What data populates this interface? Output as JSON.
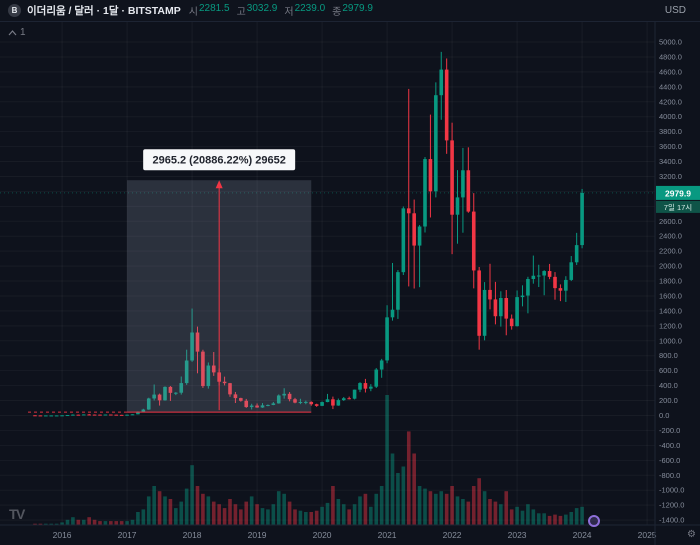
{
  "header": {
    "symbol_icon_letter": "B",
    "title": "이더리움 / 달러 · 1달 · BITSTAMP",
    "ohlc": {
      "open_label": "시",
      "open_value": "2281.5",
      "high_label": "고",
      "high_value": "3032.9",
      "low_label": "저",
      "low_value": "2239.0",
      "close_label": "종",
      "close_value": "2979.9"
    },
    "currency_button_label": "USD"
  },
  "chart_overlay": {
    "pane_control_count": "1"
  },
  "price_scale": {
    "labels_max": 5000,
    "labels_min": -1400,
    "labels_step": 200,
    "last_price_badge": "2979.9",
    "countdown_badge": "7일 17시"
  },
  "time_scale": {
    "year_labels": [
      "2016",
      "2017",
      "2018",
      "2019",
      "2020",
      "2021",
      "2022",
      "2023",
      "2024",
      "2025"
    ]
  },
  "measure_tool": {
    "label_text": "2965.2 (20886.22%) 29652",
    "from_month": "2017-01",
    "to_month": "2019-11",
    "price_top": 3150,
    "price_bottom": 45
  },
  "branding": {
    "logo_text": "TV"
  },
  "colors": {
    "up": "#089981",
    "down": "#f23645",
    "badge_green": "#089981",
    "countdown_bg": "#0f5448",
    "countdown_text": "#d6ece7",
    "bg": "#0e121c"
  },
  "chart_data": {
    "type": "candlestick",
    "symbol_title": "이더리움 / 달러",
    "interval": "1달",
    "exchange": "BITSTAMP",
    "quote_currency": "USD",
    "price_axis_range": [
      -1400,
      5000
    ],
    "candles_format": [
      "month",
      "open",
      "high",
      "low",
      "close",
      "volume_rel"
    ],
    "candles": [
      [
        "2015-08",
        3.0,
        3.0,
        0.9,
        1.3,
        1
      ],
      [
        "2015-09",
        1.3,
        1.4,
        0.6,
        0.9,
        1
      ],
      [
        "2015-10",
        0.9,
        1.1,
        0.4,
        0.9,
        1
      ],
      [
        "2015-11",
        0.9,
        1.2,
        0.8,
        0.9,
        1
      ],
      [
        "2015-12",
        0.9,
        1.0,
        0.8,
        0.9,
        1
      ],
      [
        "2016-01",
        0.9,
        2.9,
        0.9,
        2.3,
        2
      ],
      [
        "2016-02",
        2.3,
        6.8,
        2.2,
        6.3,
        4
      ],
      [
        "2016-03",
        6.3,
        15.5,
        6.0,
        11.2,
        6
      ],
      [
        "2016-04",
        11.2,
        12.0,
        7.2,
        8.8,
        4
      ],
      [
        "2016-05",
        8.8,
        15.0,
        8.5,
        14.0,
        4
      ],
      [
        "2016-06",
        14.0,
        21.0,
        10.5,
        12.2,
        6
      ],
      [
        "2016-07",
        12.2,
        13.8,
        9.7,
        11.7,
        4
      ],
      [
        "2016-08",
        11.7,
        12.5,
        9.9,
        11.2,
        3
      ],
      [
        "2016-09",
        11.2,
        13.6,
        10.9,
        13.2,
        3
      ],
      [
        "2016-10",
        13.2,
        13.4,
        10.0,
        10.9,
        3
      ],
      [
        "2016-11",
        10.9,
        11.5,
        8.5,
        8.6,
        3
      ],
      [
        "2016-12",
        8.6,
        9.0,
        6.1,
        8.0,
        3
      ],
      [
        "2017-01",
        8.0,
        11.2,
        7.9,
        10.7,
        3
      ],
      [
        "2017-02",
        10.7,
        16.4,
        10.2,
        15.9,
        4
      ],
      [
        "2017-03",
        15.9,
        55.0,
        15.1,
        49.9,
        10
      ],
      [
        "2017-04",
        49.9,
        90.0,
        41.2,
        79.8,
        12
      ],
      [
        "2017-05",
        79.8,
        238.0,
        76.0,
        228.0,
        22
      ],
      [
        "2017-06",
        228.0,
        415.0,
        201.0,
        280.0,
        30
      ],
      [
        "2017-07",
        280.0,
        293.0,
        133.0,
        203.0,
        26
      ],
      [
        "2017-08",
        203.0,
        390.0,
        198.0,
        383.0,
        22
      ],
      [
        "2017-09",
        383.0,
        395.0,
        195.0,
        303.0,
        20
      ],
      [
        "2017-10",
        303.0,
        313.0,
        273.0,
        305.0,
        13
      ],
      [
        "2017-11",
        305.0,
        522.0,
        280.0,
        434.0,
        18
      ],
      [
        "2017-12",
        434.0,
        881.0,
        410.0,
        736.0,
        28
      ],
      [
        "2018-01",
        736.0,
        1432.0,
        718.0,
        1111.0,
        46
      ],
      [
        "2018-02",
        1111.0,
        1190.0,
        565.0,
        855.0,
        30
      ],
      [
        "2018-03",
        855.0,
        880.0,
        369.0,
        394.0,
        24
      ],
      [
        "2018-04",
        394.0,
        710.0,
        360.0,
        669.0,
        22
      ],
      [
        "2018-05",
        669.0,
        850.0,
        530.0,
        577.0,
        18
      ],
      [
        "2018-06",
        577.0,
        630.0,
        404.0,
        452.0,
        16
      ],
      [
        "2018-07",
        452.0,
        520.0,
        403.0,
        433.0,
        13
      ],
      [
        "2018-08",
        433.0,
        436.0,
        250.0,
        283.0,
        20
      ],
      [
        "2018-09",
        283.0,
        315.0,
        167.0,
        233.0,
        16
      ],
      [
        "2018-10",
        233.0,
        238.0,
        185.0,
        197.0,
        12
      ],
      [
        "2018-11",
        197.0,
        222.0,
        102.0,
        113.0,
        18
      ],
      [
        "2018-12",
        113.0,
        157.0,
        81.0,
        133.0,
        22
      ],
      [
        "2019-01",
        133.0,
        161.0,
        103.0,
        107.0,
        16
      ],
      [
        "2019-02",
        107.0,
        166.0,
        102.0,
        136.0,
        13
      ],
      [
        "2019-03",
        136.0,
        148.0,
        124.0,
        141.0,
        12
      ],
      [
        "2019-04",
        141.0,
        181.0,
        138.0,
        162.0,
        16
      ],
      [
        "2019-05",
        162.0,
        282.0,
        158.0,
        268.0,
        26
      ],
      [
        "2019-06",
        268.0,
        365.0,
        225.0,
        290.0,
        24
      ],
      [
        "2019-07",
        290.0,
        314.0,
        190.0,
        218.0,
        18
      ],
      [
        "2019-08",
        218.0,
        236.0,
        163.0,
        172.0,
        12
      ],
      [
        "2019-09",
        172.0,
        224.0,
        152.0,
        180.0,
        11
      ],
      [
        "2019-10",
        180.0,
        199.0,
        151.0,
        182.0,
        10
      ],
      [
        "2019-11",
        182.0,
        190.0,
        131.0,
        151.0,
        10
      ],
      [
        "2019-12",
        151.0,
        158.0,
        116.0,
        129.0,
        11
      ],
      [
        "2020-01",
        129.0,
        188.0,
        126.0,
        180.0,
        14
      ],
      [
        "2020-02",
        180.0,
        289.0,
        178.0,
        217.0,
        17
      ],
      [
        "2020-03",
        217.0,
        253.0,
        86.0,
        133.0,
        30
      ],
      [
        "2020-04",
        133.0,
        227.0,
        130.0,
        206.0,
        20
      ],
      [
        "2020-05",
        206.0,
        248.0,
        195.0,
        231.0,
        16
      ],
      [
        "2020-06",
        231.0,
        253.0,
        216.0,
        225.0,
        12
      ],
      [
        "2020-07",
        225.0,
        347.0,
        215.0,
        346.0,
        16
      ],
      [
        "2020-08",
        346.0,
        446.0,
        313.0,
        434.0,
        22
      ],
      [
        "2020-09",
        434.0,
        490.0,
        308.0,
        359.0,
        24
      ],
      [
        "2020-10",
        359.0,
        420.0,
        325.0,
        386.0,
        14
      ],
      [
        "2020-11",
        386.0,
        635.0,
        368.0,
        615.0,
        24
      ],
      [
        "2020-12",
        615.0,
        758.0,
        505.0,
        737.0,
        30
      ],
      [
        "2021-01",
        737.0,
        1476.0,
        700.0,
        1314.0,
        100
      ],
      [
        "2021-02",
        1314.0,
        2042.0,
        1270.0,
        1416.0,
        55
      ],
      [
        "2021-03",
        1416.0,
        1947.0,
        1293.0,
        1919.0,
        40
      ],
      [
        "2021-04",
        1919.0,
        2798.0,
        1881.0,
        2773.0,
        45
      ],
      [
        "2021-05",
        2773.0,
        4372.0,
        1728.0,
        2707.0,
        72
      ],
      [
        "2021-06",
        2707.0,
        2891.0,
        1700.0,
        2275.0,
        55
      ],
      [
        "2021-07",
        2275.0,
        2550.0,
        1718.0,
        2530.0,
        30
      ],
      [
        "2021-08",
        2530.0,
        3460.0,
        2450.0,
        3433.0,
        28
      ],
      [
        "2021-09",
        3433.0,
        4028.0,
        2651.0,
        3001.0,
        26
      ],
      [
        "2021-10",
        3001.0,
        4460.0,
        2920.0,
        4288.0,
        24
      ],
      [
        "2021-11",
        4288.0,
        4868.0,
        3959.0,
        4631.0,
        26
      ],
      [
        "2021-12",
        4631.0,
        4780.0,
        3503.0,
        3683.0,
        24
      ],
      [
        "2022-01",
        3683.0,
        3920.0,
        2160.0,
        2688.0,
        30
      ],
      [
        "2022-02",
        2688.0,
        3285.0,
        2300.0,
        2920.0,
        22
      ],
      [
        "2022-03",
        2920.0,
        3582.0,
        2447.0,
        3283.0,
        20
      ],
      [
        "2022-04",
        3283.0,
        3590.0,
        2714.0,
        2730.0,
        18
      ],
      [
        "2022-05",
        2730.0,
        2977.0,
        1702.0,
        1942.0,
        30
      ],
      [
        "2022-06",
        1942.0,
        1988.0,
        881.0,
        1067.0,
        36
      ],
      [
        "2022-07",
        1067.0,
        1786.0,
        1006.0,
        1681.0,
        26
      ],
      [
        "2022-08",
        1681.0,
        2031.0,
        1421.0,
        1554.0,
        20
      ],
      [
        "2022-09",
        1554.0,
        1789.0,
        1220.0,
        1329.0,
        18
      ],
      [
        "2022-10",
        1329.0,
        1663.0,
        1190.0,
        1573.0,
        16
      ],
      [
        "2022-11",
        1573.0,
        1680.0,
        1074.0,
        1297.0,
        26
      ],
      [
        "2022-12",
        1297.0,
        1352.0,
        1150.0,
        1196.0,
        12
      ],
      [
        "2023-01",
        1196.0,
        1674.0,
        1191.0,
        1585.0,
        14
      ],
      [
        "2023-02",
        1585.0,
        1743.0,
        1461.0,
        1606.0,
        11
      ],
      [
        "2023-03",
        1606.0,
        1857.0,
        1368.0,
        1827.0,
        16
      ],
      [
        "2023-04",
        1827.0,
        2141.0,
        1765.0,
        1871.0,
        12
      ],
      [
        "2023-05",
        1871.0,
        2018.0,
        1720.0,
        1874.0,
        9
      ],
      [
        "2023-06",
        1874.0,
        1945.0,
        1610.0,
        1934.0,
        9
      ],
      [
        "2023-07",
        1934.0,
        2029.0,
        1825.0,
        1856.0,
        7
      ],
      [
        "2023-08",
        1856.0,
        1920.0,
        1550.0,
        1705.0,
        8
      ],
      [
        "2023-09",
        1705.0,
        1755.0,
        1531.0,
        1671.0,
        7
      ],
      [
        "2023-10",
        1671.0,
        1865.0,
        1520.0,
        1815.0,
        8
      ],
      [
        "2023-11",
        1815.0,
        2135.0,
        1800.0,
        2051.0,
        10
      ],
      [
        "2023-12",
        2051.0,
        2445.0,
        2015.0,
        2281.0,
        13
      ],
      [
        "2024-01",
        2281.5,
        3032.9,
        2239.0,
        2979.9,
        14
      ]
    ]
  }
}
